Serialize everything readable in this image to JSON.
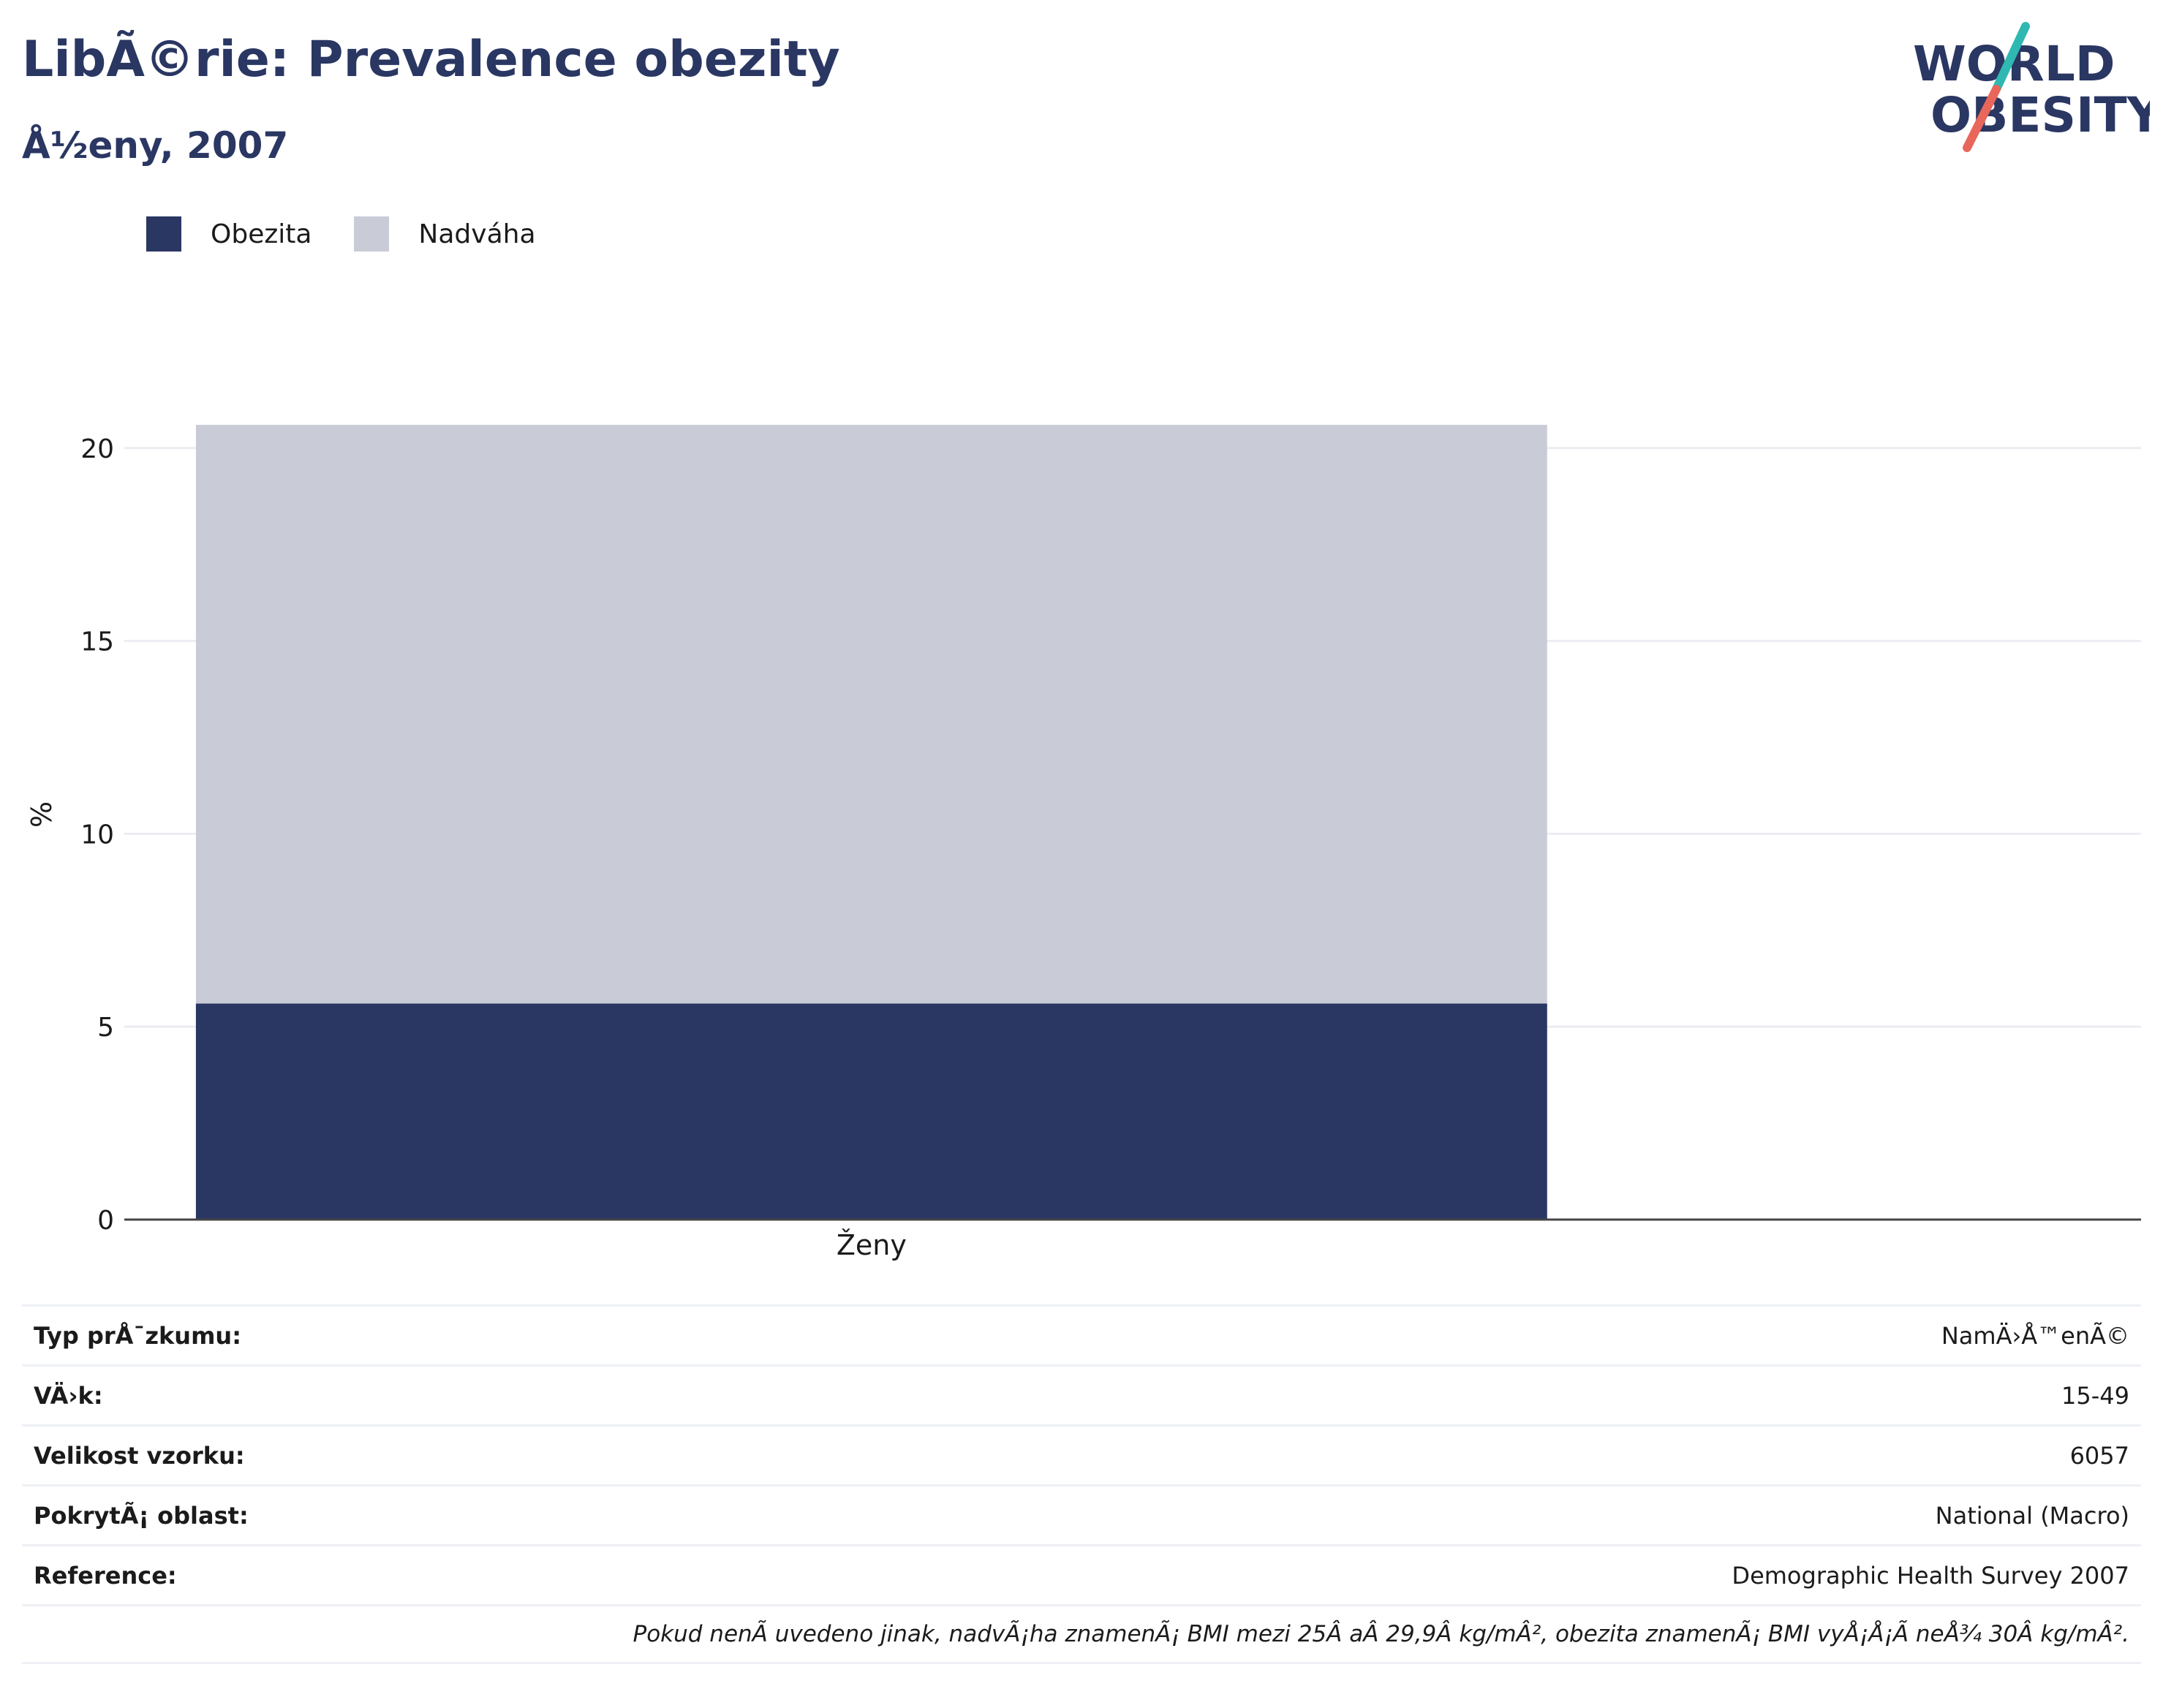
{
  "header": {
    "title": "LibÃ©rie: Prevalence obezity",
    "subtitle": "Å½eny, 2007"
  },
  "logo": {
    "line1": "WORLD",
    "line2": "OBESITY",
    "accent_teal": "#2fb8b2",
    "accent_coral": "#e8675a",
    "text_color": "#2a3763"
  },
  "legend": {
    "items": [
      {
        "label": "Obezita",
        "color": "#2a3763"
      },
      {
        "label": "Nadváha",
        "color": "#c9ccd7"
      }
    ]
  },
  "chart_data": {
    "type": "bar",
    "stacked": true,
    "categories": [
      "Ženy"
    ],
    "series": [
      {
        "name": "Obezita",
        "values": [
          5.6
        ],
        "color": "#2a3763"
      },
      {
        "name": "Nadváha",
        "values": [
          15.0
        ],
        "color": "#c9ccd7"
      }
    ],
    "ylabel": "%",
    "ylim": [
      0,
      21
    ],
    "yticks": [
      0,
      5,
      10,
      15,
      20
    ],
    "grid": true,
    "legend_position": "top-left"
  },
  "info": {
    "rows": [
      {
        "label": "Typ prÅ¯zkumu:",
        "value": "NamÄ›Å™enÃ©"
      },
      {
        "label": "VÄ›k:",
        "value": "15-49"
      },
      {
        "label": "Velikost vzorku:",
        "value": "6057"
      },
      {
        "label": "PokrytÃ¡ oblast:",
        "value": "National (Macro)"
      },
      {
        "label": "Reference:",
        "value": "Demographic Health Survey 2007"
      }
    ],
    "note": "Pokud nenÃ uvedeno jinak, nadvÃ¡ha znamenÃ¡ BMI mezi 25Â aÂ 29,9Â kg/mÂ², obezita znamenÃ¡ BMI vyÅ¡Å¡Ã neÅ¾ 30Â kg/mÂ²."
  }
}
